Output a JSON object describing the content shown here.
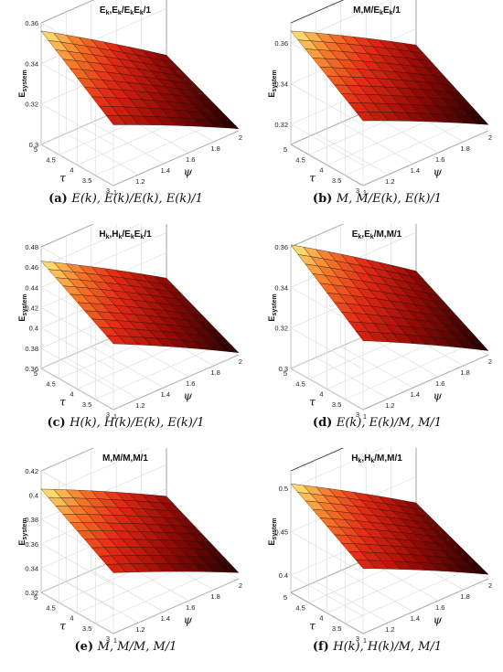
{
  "chart_data": [
    {
      "type": "surface3d",
      "title": "E_k,E_k/E_kE_k/1",
      "title_parts": [
        [
          "E",
          ""
        ],
        [
          "k",
          "sub"
        ],
        [
          ",E",
          ""
        ],
        [
          "k",
          "sub"
        ],
        [
          "/E",
          ""
        ],
        [
          "k",
          "sub"
        ],
        [
          "E",
          ""
        ],
        [
          "k",
          "sub"
        ],
        [
          "/1",
          ""
        ]
      ],
      "xlabel": "ψ",
      "ylabel": "τ",
      "zlabel": "E_system",
      "zlabel_main": "E",
      "zlabel_sub": "system",
      "x": [
        1,
        2
      ],
      "y": [
        3,
        5
      ],
      "zlim": [
        0.3,
        0.36
      ],
      "zticks": [
        "0.3",
        "0.32",
        "0.34",
        "0.36"
      ],
      "corner_values": {
        "x1_y5": 0.356,
        "x2_y5": 0.317,
        "x1_y3": 0.33,
        "x2_y3": 0.301
      },
      "xticks": [
        "1",
        "1.2",
        "1.4",
        "1.6",
        "1.8",
        "2"
      ],
      "yticks": [
        "3",
        "3.5",
        "4",
        "4.5",
        "5"
      ],
      "caption_label": "(a)",
      "caption_text": "E(k), E(k)/E(k), E(k)/1"
    },
    {
      "type": "surface3d",
      "title": "M,M/E_kE_k/1",
      "title_parts": [
        [
          "M,M/E",
          ""
        ],
        [
          "k",
          "sub"
        ],
        [
          "E",
          ""
        ],
        [
          "k",
          "sub"
        ],
        [
          "/1",
          ""
        ]
      ],
      "xlabel": "ψ",
      "ylabel": "τ",
      "zlabel": "E_system",
      "zlabel_main": "E",
      "zlabel_sub": "system",
      "x": [
        1,
        2
      ],
      "y": [
        3,
        5
      ],
      "zlim": [
        0.31,
        0.37
      ],
      "zticks": [
        "0.32",
        "0.34",
        "0.36"
      ],
      "corner_values": {
        "x1_y5": 0.366,
        "x2_y5": 0.332,
        "x1_y3": 0.342,
        "x2_y3": 0.313
      },
      "xticks": [
        "1",
        "1.2",
        "1.4",
        "1.6",
        "1.8",
        "2"
      ],
      "yticks": [
        "3",
        "3.5",
        "4",
        "4.5",
        "5"
      ],
      "caption_label": "(b)",
      "caption_text": "M, M/E(k), E(k)/1"
    },
    {
      "type": "surface3d",
      "title": "H_k,H_k/E_kE_k/1",
      "title_parts": [
        [
          "H",
          ""
        ],
        [
          "k",
          "sub"
        ],
        [
          ",H",
          ""
        ],
        [
          "k",
          "sub"
        ],
        [
          "/E",
          ""
        ],
        [
          "k",
          "sub"
        ],
        [
          "E",
          ""
        ],
        [
          "k",
          "sub"
        ],
        [
          "/1",
          ""
        ]
      ],
      "xlabel": "ψ",
      "ylabel": "τ",
      "zlabel": "E_system",
      "zlabel_main": "E",
      "zlabel_sub": "system",
      "x": [
        1,
        2
      ],
      "y": [
        3,
        5
      ],
      "zlim": [
        0.36,
        0.48
      ],
      "zticks": [
        "0.36",
        "0.38",
        "0.4",
        "0.42",
        "0.44",
        "0.46",
        "0.48"
      ],
      "corner_values": {
        "x1_y5": 0.466,
        "x2_y5": 0.395,
        "x1_y3": 0.425,
        "x2_y3": 0.362
      },
      "xticks": [
        "1",
        "1.2",
        "1.4",
        "1.6",
        "1.8",
        "2"
      ],
      "yticks": [
        "3",
        "3.5",
        "4",
        "4.5",
        "5"
      ],
      "caption_label": "(c)",
      "caption_text": "H(k), H(k)/E(k), E(k)/1"
    },
    {
      "type": "surface3d",
      "title": "E_k,E_k/M,M/1",
      "title_parts": [
        [
          "E",
          ""
        ],
        [
          "k",
          "sub"
        ],
        [
          ",E",
          ""
        ],
        [
          "k",
          "sub"
        ],
        [
          "/M,M/1",
          ""
        ]
      ],
      "xlabel": "ψ",
      "ylabel": "τ",
      "zlabel": "E_system",
      "zlabel_main": "E",
      "zlabel_sub": "system",
      "x": [
        1,
        2
      ],
      "y": [
        3,
        5
      ],
      "zlim": [
        0.3,
        0.36
      ],
      "zticks": [
        "0.3",
        "0.32",
        "0.34",
        "0.36"
      ],
      "corner_values": {
        "x1_y5": 0.361,
        "x2_y5": 0.321,
        "x1_y3": 0.334,
        "x2_y3": 0.302
      },
      "xticks": [
        "1",
        "1.2",
        "1.4",
        "1.6",
        "1.8",
        "2"
      ],
      "yticks": [
        "3",
        "3.5",
        "4",
        "4.5",
        "5"
      ],
      "caption_label": "(d)",
      "caption_text": "E(k), E(k)/M, M/1"
    },
    {
      "type": "surface3d",
      "title": "M,M/M,M/1",
      "title_parts": [
        [
          "M,M/M,M/1",
          ""
        ]
      ],
      "xlabel": "ψ",
      "ylabel": "τ",
      "zlabel": "E_system",
      "zlabel_main": "E",
      "zlabel_sub": "system",
      "x": [
        1,
        2
      ],
      "y": [
        3,
        5
      ],
      "zlim": [
        0.32,
        0.42
      ],
      "zticks": [
        "0.32",
        "0.34",
        "0.36",
        "0.38",
        "0.4",
        "0.42"
      ],
      "corner_values": {
        "x1_y5": 0.405,
        "x2_y5": 0.354,
        "x1_y3": 0.37,
        "x2_y3": 0.325
      },
      "xticks": [
        "1",
        "1.2",
        "1.4",
        "1.6",
        "1.8",
        "2"
      ],
      "yticks": [
        "3",
        "3.5",
        "4",
        "4.5",
        "5"
      ],
      "caption_label": "(e)",
      "caption_text": "M, M/M, M/1"
    },
    {
      "type": "surface3d",
      "title": "H_k,H_k/M,M/1",
      "title_parts": [
        [
          "H",
          ""
        ],
        [
          "k",
          "sub"
        ],
        [
          ",H",
          ""
        ],
        [
          "k",
          "sub"
        ],
        [
          "/M,M/1",
          ""
        ]
      ],
      "xlabel": "ψ",
      "ylabel": "τ",
      "zlabel": "E_system",
      "zlabel_main": "E",
      "zlabel_sub": "system",
      "x": [
        1,
        2
      ],
      "y": [
        3,
        5
      ],
      "zlim": [
        0.38,
        0.52
      ],
      "zticks": [
        "0.4",
        "0.45",
        "0.5"
      ],
      "corner_values": {
        "x1_y5": 0.505,
        "x2_y5": 0.42,
        "x1_y3": 0.455,
        "x2_y3": 0.385
      },
      "xticks": [
        "1",
        "1.2",
        "1.4",
        "1.6",
        "1.8",
        "2"
      ],
      "yticks": [
        "3",
        "3.5",
        "4",
        "4.5",
        "5"
      ],
      "caption_label": "(f)",
      "caption_text": "H(k), H(k)/M, M/1"
    }
  ]
}
